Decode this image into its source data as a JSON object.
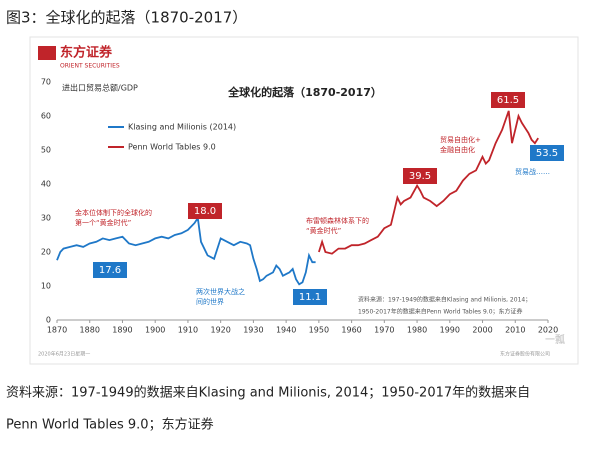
{
  "heading": "图3：全球化的起落（1870-2017）",
  "logo": {
    "name": "东方证券",
    "sub": "ORIENT SECURITIES"
  },
  "chart_data": {
    "type": "line",
    "title": "全球化的起落（1870-2017）",
    "y_label": "进出口贸易总额/GDP",
    "xlim": [
      1870,
      2020
    ],
    "xticks": [
      1870,
      1880,
      1890,
      1900,
      1910,
      1920,
      1930,
      1940,
      1950,
      1960,
      1970,
      1980,
      1990,
      2000,
      2010,
      2020
    ],
    "ylim": [
      0,
      70
    ],
    "yticks": [
      0,
      10,
      20,
      30,
      40,
      50,
      60,
      70
    ],
    "grid": false,
    "series": [
      {
        "name": "Klasing and Milionis (2014)",
        "color": "#1f78c8",
        "x": [
          1870,
          1871,
          1872,
          1874,
          1876,
          1878,
          1880,
          1882,
          1884,
          1886,
          1888,
          1890,
          1892,
          1894,
          1896,
          1898,
          1900,
          1902,
          1904,
          1906,
          1908,
          1910,
          1912,
          1913,
          1914,
          1916,
          1918,
          1920,
          1922,
          1924,
          1926,
          1928,
          1929,
          1930,
          1931,
          1932,
          1933,
          1934,
          1936,
          1937,
          1938,
          1939,
          1940,
          1941,
          1942,
          1943,
          1944,
          1945,
          1946,
          1947,
          1948,
          1949
        ],
        "values": [
          17.6,
          20,
          21,
          21.5,
          22,
          21.5,
          22.5,
          23,
          24,
          23.5,
          24,
          24.5,
          22.5,
          22,
          22.5,
          23,
          24,
          24.5,
          24,
          25,
          25.5,
          26.5,
          28.5,
          30,
          23,
          19,
          18,
          24,
          23,
          22,
          23,
          22.5,
          22,
          18,
          15,
          11.5,
          12,
          13,
          14,
          16,
          15,
          13,
          13.5,
          14,
          15,
          12,
          10.5,
          11.1,
          14,
          19,
          17,
          17
        ]
      },
      {
        "name": "Penn World Tables 9.0",
        "color": "#c0242a",
        "x": [
          1950,
          1951,
          1952,
          1954,
          1956,
          1958,
          1960,
          1962,
          1964,
          1966,
          1968,
          1970,
          1972,
          1973,
          1974,
          1975,
          1976,
          1978,
          1980,
          1981,
          1982,
          1984,
          1986,
          1988,
          1990,
          1992,
          1994,
          1996,
          1998,
          2000,
          2001,
          2002,
          2004,
          2006,
          2008,
          2009,
          2010,
          2011,
          2012,
          2014,
          2015,
          2016,
          2017
        ],
        "values": [
          20,
          23,
          20,
          19.5,
          21,
          21,
          22,
          22,
          22.5,
          23.5,
          24.5,
          27,
          28,
          32,
          36,
          34,
          35,
          36,
          39.5,
          38,
          36,
          35,
          33.5,
          35,
          37,
          38,
          41,
          43,
          44,
          48,
          46,
          47,
          52,
          56,
          61.5,
          52,
          56,
          60,
          58,
          55,
          53,
          52,
          53.5
        ]
      }
    ],
    "annotations": [
      {
        "text": [
          "17.6"
        ]
      },
      {
        "text": [
          "18.0"
        ]
      },
      {
        "text": [
          "11.1"
        ]
      },
      {
        "text": [
          "39.5"
        ]
      },
      {
        "text": [
          "61.5"
        ]
      },
      {
        "text": [
          "53.5"
        ]
      },
      {
        "text": [
          "金本位体制下的全球化的",
          "第一个“黄金时代”"
        ]
      },
      {
        "text": [
          "两次世界大战之",
          "间的世界"
        ]
      },
      {
        "text": [
          "布雷顿森林体系下的",
          "“黄金时代”"
        ]
      },
      {
        "text": [
          "贸易自由化+",
          "金融自由化"
        ]
      },
      {
        "text": [
          "贸易战……"
        ]
      }
    ],
    "note": [
      "资料来源：197-1949的数据来自Klasing and Milionis, 2014；",
      "1950-2017年的数据来自Penn World Tables 9.0；东方证券"
    ],
    "footer_left": "2020年6月23日星期一",
    "footer_right": "东方证券股份有限公司"
  },
  "caption": [
    "资料来源：197-1949的数据来自Klasing and Milionis, 2014；1950-2017年的数据来自",
    "Penn World Tables 9.0；东方证券"
  ],
  "watermark": "一瓢"
}
